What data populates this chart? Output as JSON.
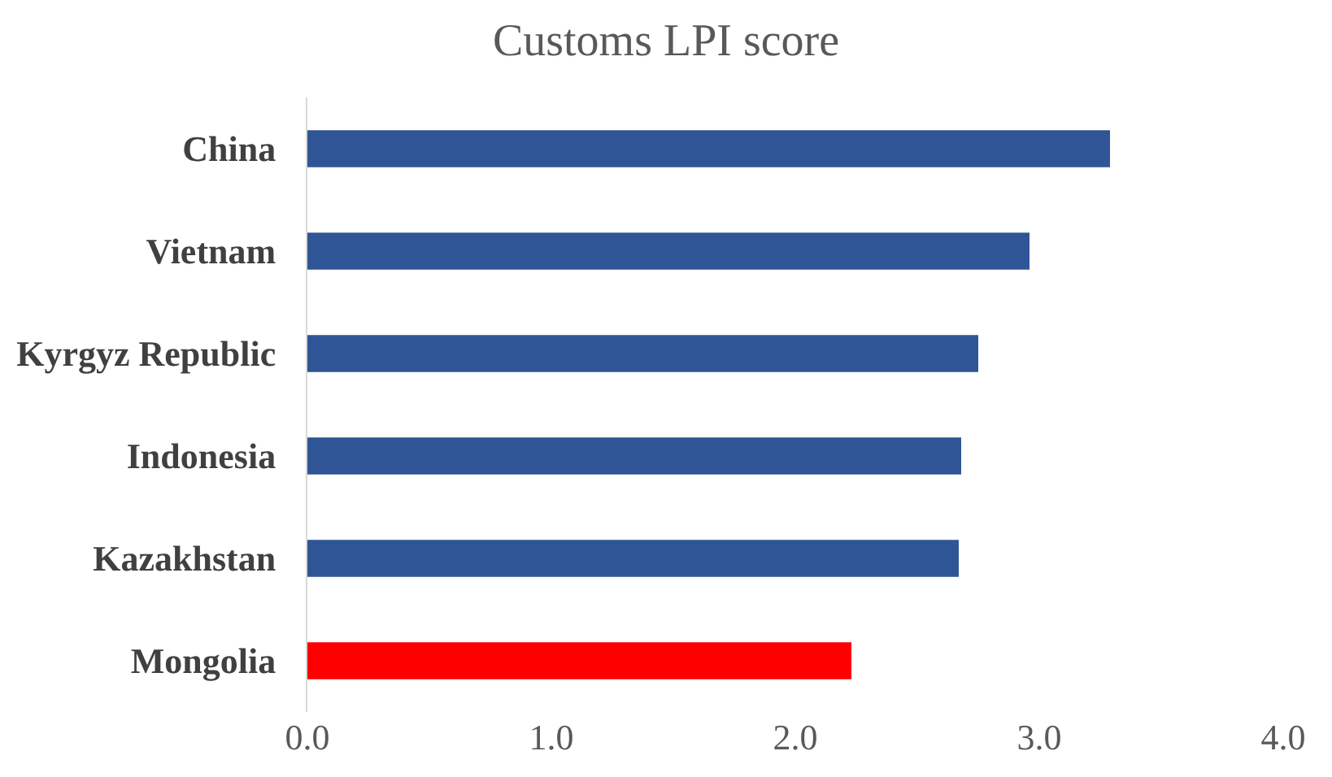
{
  "chart_data": {
    "type": "bar",
    "orientation": "horizontal",
    "title": "Customs LPI score",
    "categories": [
      "China",
      "Vietnam",
      "Kyrgyz Republic",
      "Indonesia",
      "Kazakhstan",
      "Mongolia"
    ],
    "values": [
      3.29,
      2.96,
      2.75,
      2.68,
      2.67,
      2.23
    ],
    "colors": [
      "#2f5597",
      "#2f5597",
      "#2f5597",
      "#2f5597",
      "#2f5597",
      "#ff0000"
    ],
    "xlim": [
      0,
      4
    ],
    "xticks": [
      {
        "value": 0,
        "label": "0.0"
      },
      {
        "value": 1,
        "label": "1.0"
      },
      {
        "value": 2,
        "label": "2.0"
      },
      {
        "value": 3,
        "label": "3.0"
      },
      {
        "value": 4,
        "label": "4.0"
      }
    ]
  }
}
